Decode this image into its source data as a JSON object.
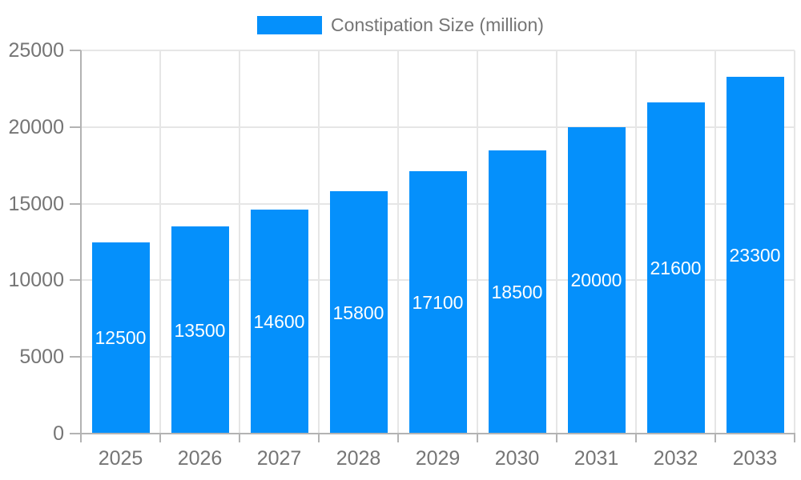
{
  "chart_data": {
    "type": "bar",
    "title": "",
    "legend": {
      "label": "Constipation Size (million)",
      "position": "top"
    },
    "categories": [
      "2025",
      "2026",
      "2027",
      "2028",
      "2029",
      "2030",
      "2031",
      "2032",
      "2033"
    ],
    "series": [
      {
        "name": "Constipation Size (million)",
        "values": [
          12500,
          13500,
          14600,
          15800,
          17100,
          18500,
          20000,
          21600,
          23300
        ]
      }
    ],
    "value_labels_shown": true,
    "xlabel": "",
    "ylabel": "",
    "ylim": [
      0,
      25000
    ],
    "yticks": [
      0,
      5000,
      10000,
      15000,
      20000,
      25000
    ],
    "grid": true,
    "colors": {
      "bar": "#0590FB",
      "grid": "#E6E6E6",
      "axis": "#B3B3B3",
      "tick_label": "#757575",
      "value_label": "#FFFFFF",
      "legend_text": "#757575"
    }
  }
}
